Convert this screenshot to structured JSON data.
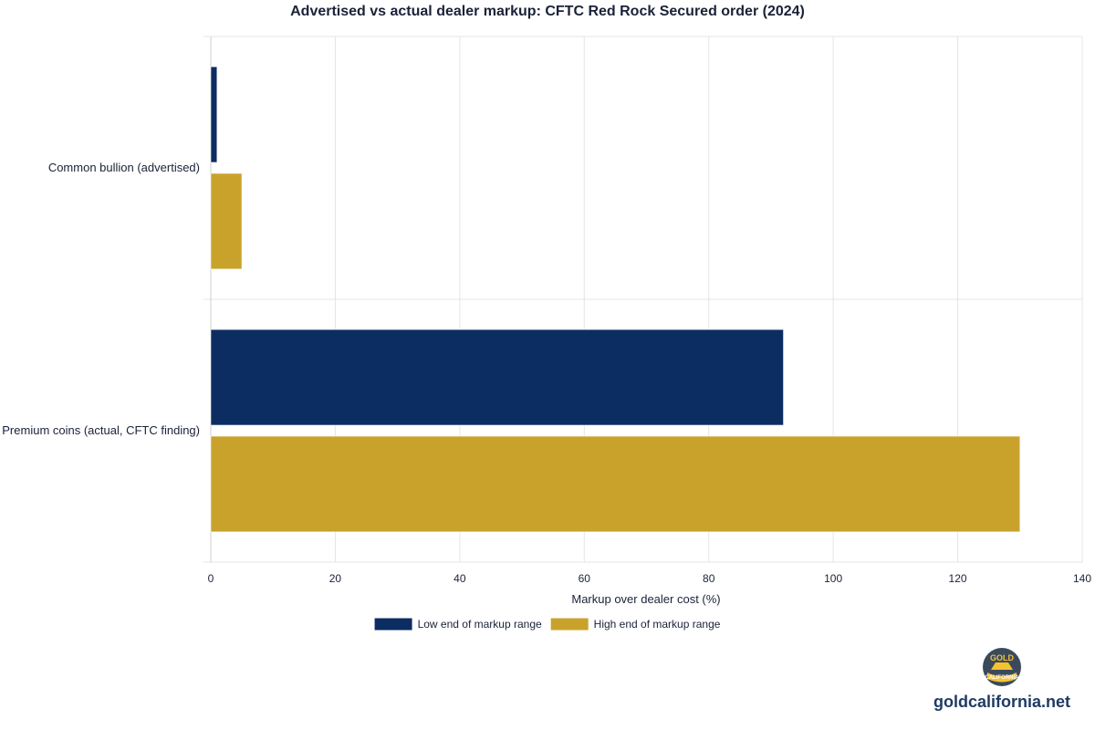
{
  "chart_data": {
    "type": "bar",
    "orientation": "horizontal",
    "title": "Advertised vs actual dealer markup: CFTC Red Rock Secured order (2024)",
    "xlabel": "Markup over dealer cost (%)",
    "ylabel": "",
    "categories": [
      "Common bullion (advertised)",
      "Premium coins (actual, CFTC finding)"
    ],
    "series": [
      {
        "name": "Low end of markup range",
        "color": "#0c2d62",
        "values": [
          1,
          92
        ]
      },
      {
        "name": "High end of markup range",
        "color": "#c9a22b",
        "values": [
          5,
          130
        ]
      }
    ],
    "xlim": [
      0,
      140
    ],
    "xticks": [
      0,
      20,
      40,
      60,
      80,
      100,
      120,
      140
    ],
    "grid": true,
    "legend": "bottom-center"
  },
  "branding": {
    "site": "goldcalifornia.net",
    "logo_text_top": "GOLD",
    "logo_text_bottom": "CALIFORNIA"
  }
}
